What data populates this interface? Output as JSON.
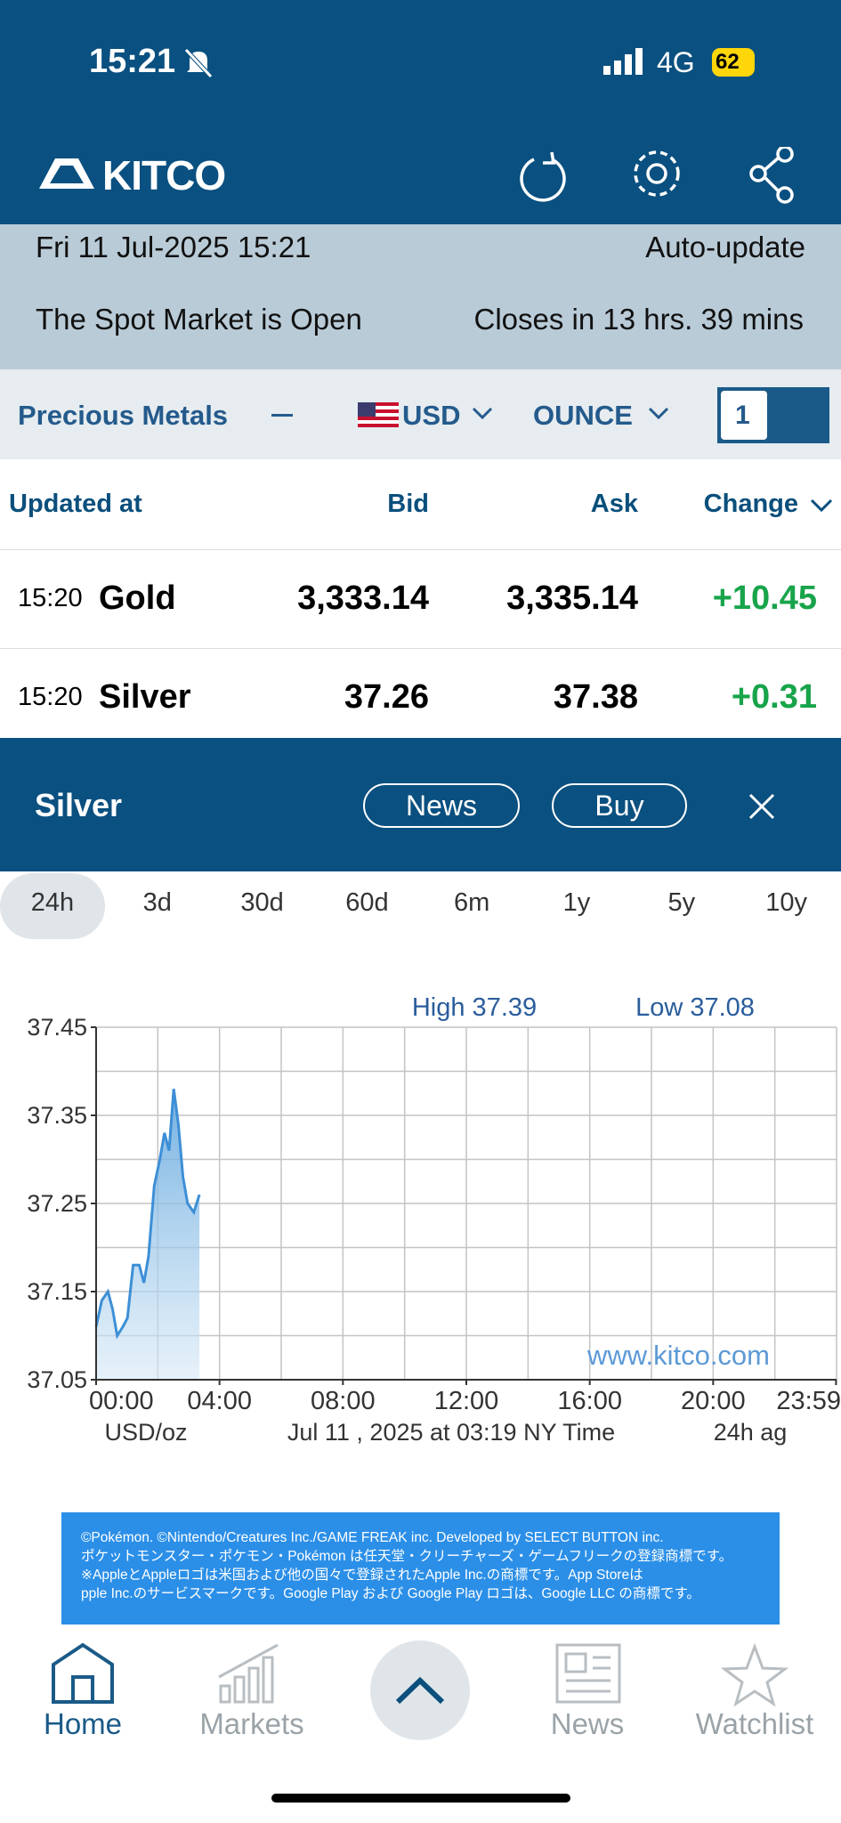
{
  "status_bar": {
    "time": "15:21",
    "network": "4G",
    "battery": "62"
  },
  "header": {
    "logo": "KITCO"
  },
  "info": {
    "date": "Fri 11 Jul-2025 15:21",
    "auto_update": "Auto-update",
    "market_status": "The Spot Market is Open",
    "closes": "Closes in 13 hrs. 39 mins"
  },
  "toolbar": {
    "category": "Precious Metals",
    "currency": "USD",
    "unit": "OUNCE",
    "quantity": "1"
  },
  "table": {
    "headers": [
      "Updated at",
      "Bid",
      "Ask",
      "Change"
    ],
    "rows": [
      [
        "15:20",
        "Gold",
        "3,333.14",
        "3,335.14",
        "+10.45"
      ],
      [
        "15:20",
        "Silver",
        "37.26",
        "37.38",
        "+0.31"
      ]
    ]
  },
  "detail": {
    "title": "Silver",
    "news": "News",
    "buy": "Buy"
  },
  "ranges": [
    "24h",
    "3d",
    "30d",
    "60d",
    "6m",
    "1y",
    "5y",
    "10y"
  ],
  "chart_data": {
    "type": "area",
    "annotations": {
      "high": "High 37.39",
      "low": "Low 37.08",
      "watermark": "www.kitco.com",
      "unit": "USD/oz",
      "timestamp": "Jul 11 , 2025 at 03:19 NY Time",
      "period": "24h ag"
    },
    "x": [
      0,
      11,
      23,
      32,
      41,
      52,
      61,
      72,
      84,
      93,
      102,
      113,
      124,
      133,
      142,
      151,
      160,
      169,
      178,
      190,
      201
    ],
    "series": [
      {
        "name": "Silver",
        "color": "#3d8fd6",
        "values": [
          37.11,
          37.14,
          37.15,
          37.13,
          37.1,
          37.11,
          37.12,
          37.18,
          37.18,
          37.16,
          37.19,
          37.27,
          37.3,
          37.33,
          37.31,
          37.38,
          37.34,
          37.28,
          37.25,
          37.24,
          37.26
        ]
      }
    ],
    "xlim": [
      0,
      1440
    ],
    "ylim": [
      37.05,
      37.45
    ],
    "xticks": [
      {
        "value": 0,
        "label": "00:00"
      },
      {
        "value": 240,
        "label": "04:00"
      },
      {
        "value": 480,
        "label": "08:00"
      },
      {
        "value": 720,
        "label": "12:00"
      },
      {
        "value": 960,
        "label": "16:00"
      },
      {
        "value": 1200,
        "label": "20:00"
      },
      {
        "value": 1439,
        "label": "23:59"
      }
    ],
    "yticks": [
      37.05,
      37.15,
      37.25,
      37.35,
      37.45
    ],
    "xgrid": [
      0,
      120,
      240,
      360,
      480,
      600,
      720,
      840,
      960,
      1080,
      1200,
      1320,
      1440
    ],
    "ygrid": [
      37.05,
      37.1,
      37.15,
      37.2,
      37.25,
      37.3,
      37.35,
      37.4,
      37.45
    ],
    "grid": true
  },
  "ad": {
    "lines": [
      "©Pokémon. ©Nintendo/Creatures Inc./GAME FREAK inc. Developed by SELECT BUTTON inc.",
      "ポケットモンスター・ポケモン・Pokémon は任天堂・クリーチャーズ・ゲームフリークの登録商標です。",
      "※AppleとAppleロゴは米国および他の国々で登録されたApple Inc.の商標です。App Storeは",
      "pple Inc.のサービスマークです。Google Play および Google Play ロゴは、Google LLC の商標です。"
    ]
  },
  "nav": [
    "Home",
    "Markets",
    "News",
    "Watchlist"
  ]
}
